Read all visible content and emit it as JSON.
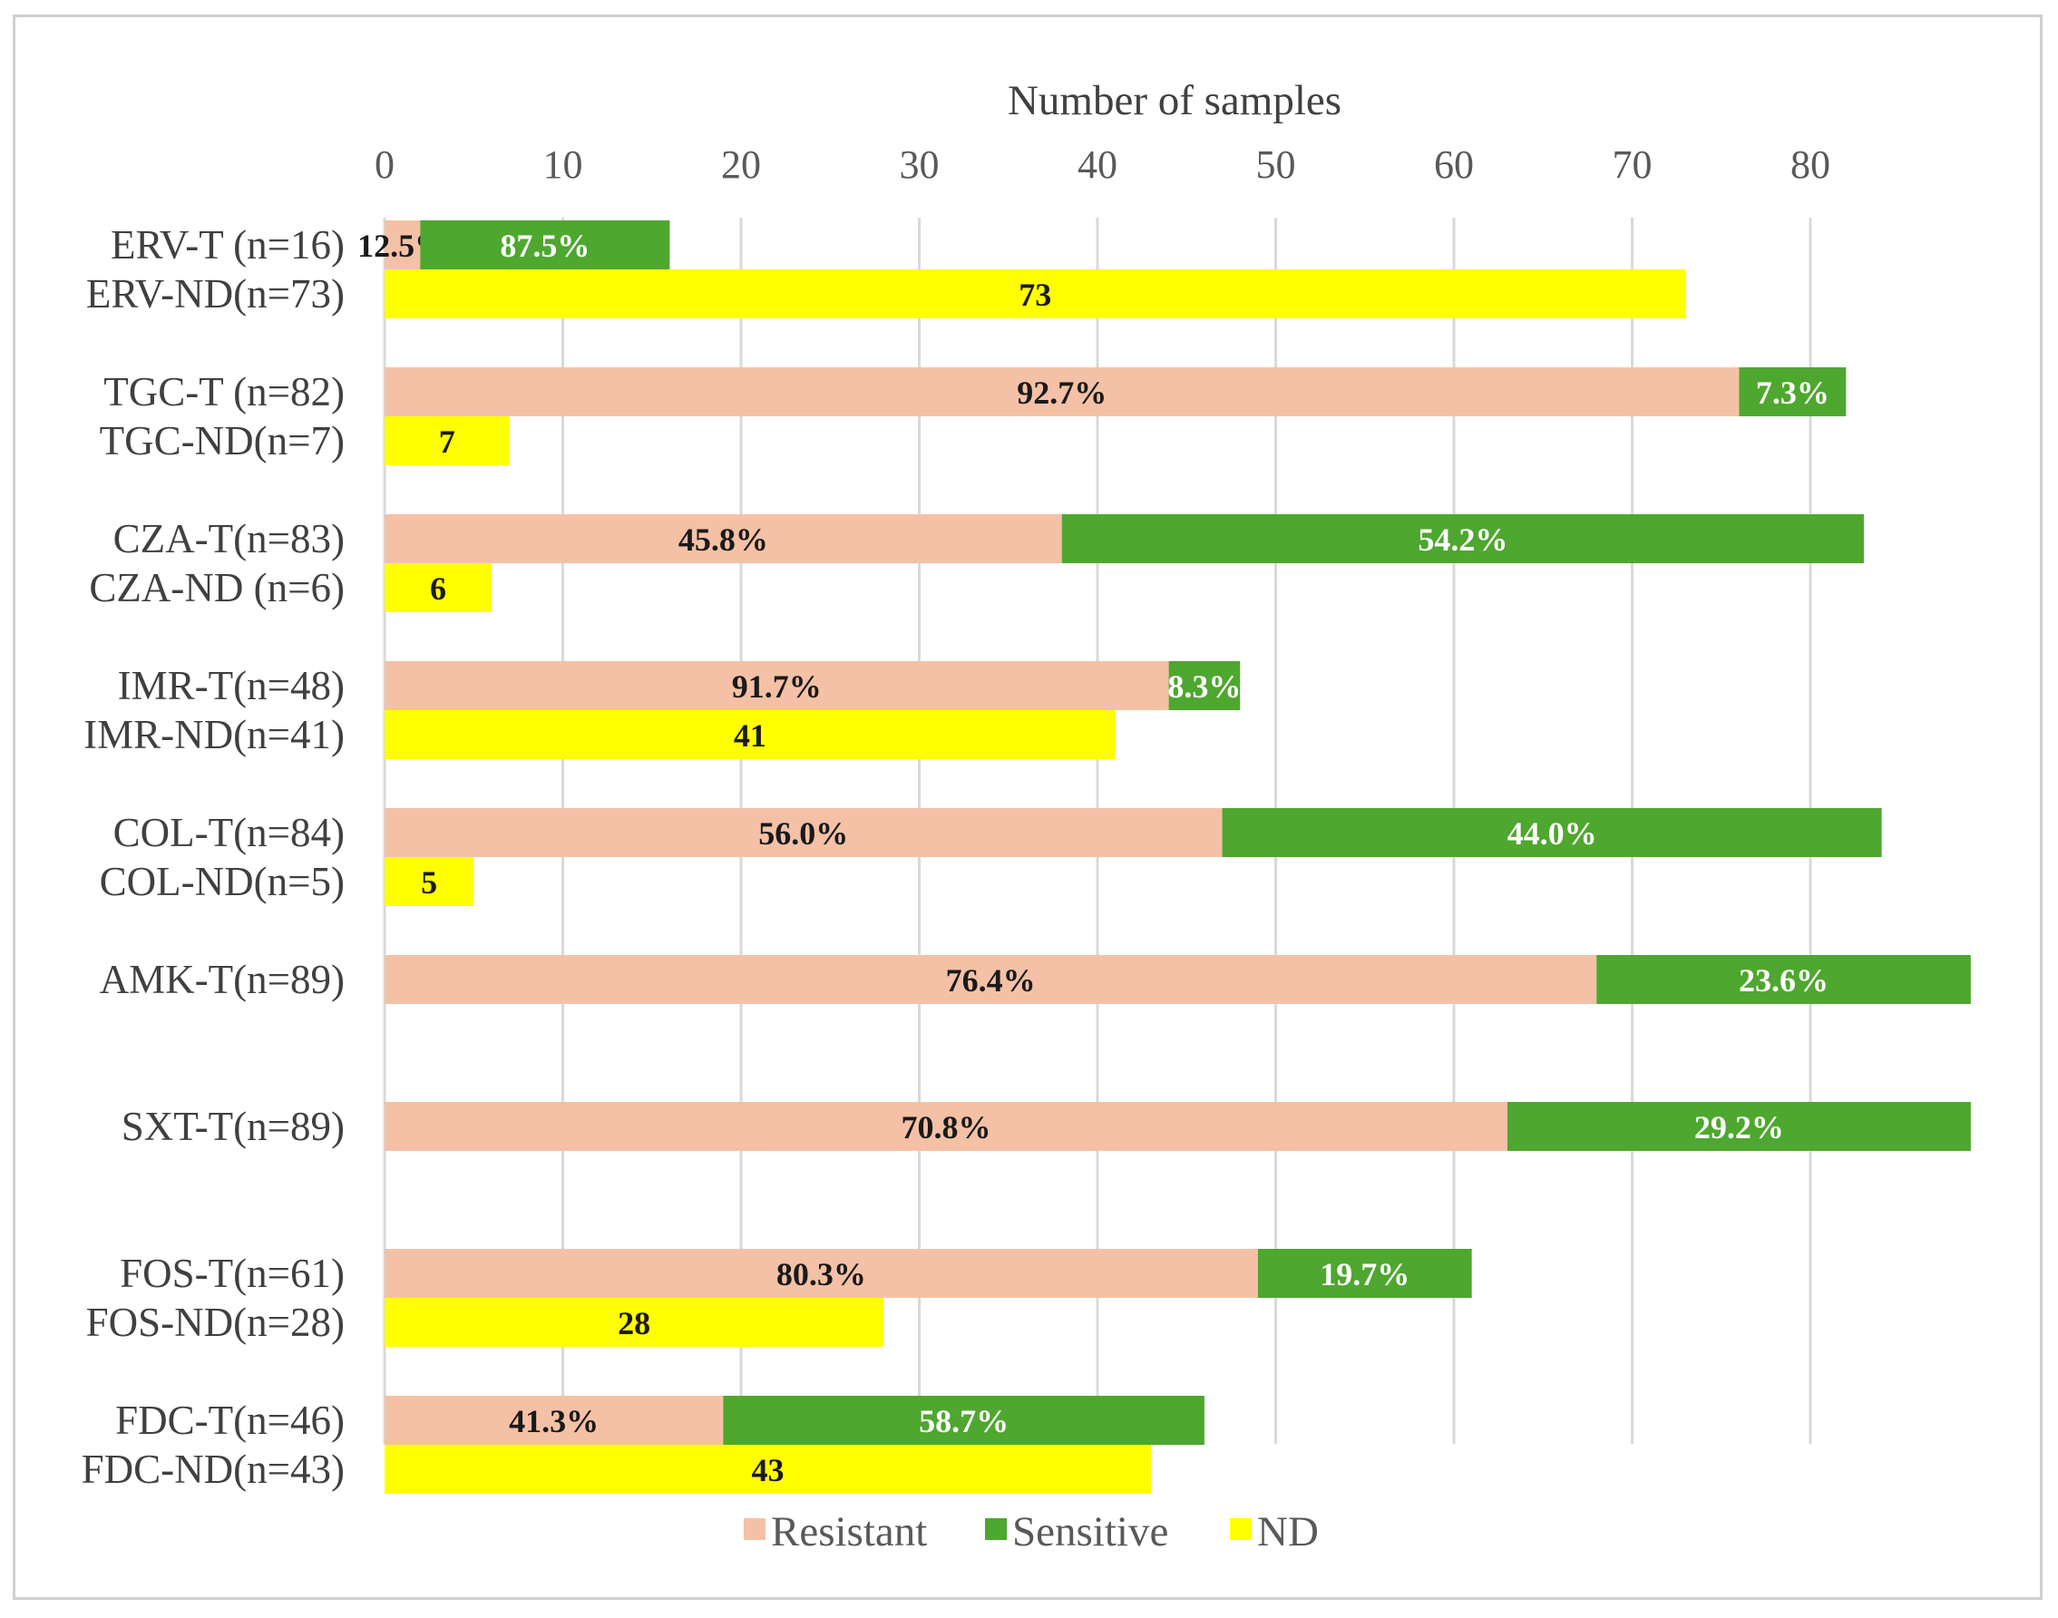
{
  "chart_data": {
    "type": "bar",
    "orientation": "horizontal",
    "stacked": true,
    "xlabel": "Number of samples",
    "x_axis_position": "top",
    "xlim": [
      0,
      89
    ],
    "xticks": [
      0,
      10,
      20,
      30,
      40,
      50,
      60,
      70,
      80
    ],
    "grid": "vertical",
    "legend": "bottom",
    "colors": {
      "Resistant": "#f4c1a6",
      "Sensitive": "#4ea72e",
      "ND": "#ffff00"
    },
    "series_names": [
      "Resistant",
      "Sensitive",
      "ND"
    ],
    "groups": [
      {
        "rows": [
          {
            "label": "ERV-T  (n=16)",
            "segments": [
              {
                "series": "Resistant",
                "value": 2,
                "label": "12.5%"
              },
              {
                "series": "Sensitive",
                "value": 14,
                "label": "87.5%"
              }
            ]
          },
          {
            "label": "ERV-ND(n=73)",
            "segments": [
              {
                "series": "ND",
                "value": 73,
                "label": "73"
              }
            ]
          }
        ]
      },
      {
        "rows": [
          {
            "label": "TGC-T  (n=82)",
            "segments": [
              {
                "series": "Resistant",
                "value": 76,
                "label": "92.7%"
              },
              {
                "series": "Sensitive",
                "value": 6,
                "label": "7.3%"
              }
            ]
          },
          {
            "label": "TGC-ND(n=7)",
            "segments": [
              {
                "series": "ND",
                "value": 7,
                "label": "7"
              }
            ]
          }
        ]
      },
      {
        "rows": [
          {
            "label": "CZA-T(n=83)",
            "segments": [
              {
                "series": "Resistant",
                "value": 38,
                "label": "45.8%"
              },
              {
                "series": "Sensitive",
                "value": 45,
                "label": "54.2%"
              }
            ]
          },
          {
            "label": "CZA-ND (n=6)",
            "segments": [
              {
                "series": "ND",
                "value": 6,
                "label": "6"
              }
            ]
          }
        ]
      },
      {
        "rows": [
          {
            "label": "IMR-T(n=48)",
            "segments": [
              {
                "series": "Resistant",
                "value": 44,
                "label": "91.7%"
              },
              {
                "series": "Sensitive",
                "value": 4,
                "label": "8.3%"
              }
            ]
          },
          {
            "label": "IMR-ND(n=41)",
            "segments": [
              {
                "series": "ND",
                "value": 41,
                "label": "41"
              }
            ]
          }
        ]
      },
      {
        "rows": [
          {
            "label": "COL-T(n=84)",
            "segments": [
              {
                "series": "Resistant",
                "value": 47,
                "label": "56.0%"
              },
              {
                "series": "Sensitive",
                "value": 37,
                "label": "44.0%"
              }
            ]
          },
          {
            "label": "COL-ND(n=5)",
            "segments": [
              {
                "series": "ND",
                "value": 5,
                "label": "5"
              }
            ]
          }
        ]
      },
      {
        "rows": [
          {
            "label": "AMK-T(n=89)",
            "segments": [
              {
                "series": "Resistant",
                "value": 68,
                "label": "76.4%"
              },
              {
                "series": "Sensitive",
                "value": 21,
                "label": "23.6%"
              }
            ]
          }
        ]
      },
      {
        "rows": [
          {
            "label": "SXT-T(n=89)",
            "segments": [
              {
                "series": "Resistant",
                "value": 63,
                "label": "70.8%"
              },
              {
                "series": "Sensitive",
                "value": 26,
                "label": "29.2%"
              }
            ]
          }
        ]
      },
      {
        "rows": [
          {
            "label": "FOS-T(n=61)",
            "segments": [
              {
                "series": "Resistant",
                "value": 49,
                "label": "80.3%"
              },
              {
                "series": "Sensitive",
                "value": 12,
                "label": "19.7%"
              }
            ]
          },
          {
            "label": "FOS-ND(n=28)",
            "segments": [
              {
                "series": "ND",
                "value": 28,
                "label": "28"
              }
            ]
          }
        ]
      },
      {
        "rows": [
          {
            "label": "FDC-T(n=46)",
            "segments": [
              {
                "series": "Resistant",
                "value": 19,
                "label": "41.3%"
              },
              {
                "series": "Sensitive",
                "value": 27,
                "label": "58.7%"
              }
            ]
          },
          {
            "label": "FDC-ND(n=43)",
            "segments": [
              {
                "series": "ND",
                "value": 43,
                "label": "43"
              }
            ]
          }
        ]
      }
    ]
  }
}
